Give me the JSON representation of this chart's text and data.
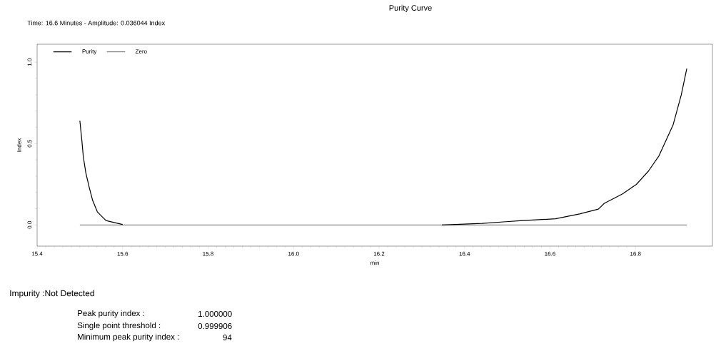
{
  "chart_data": {
    "type": "line",
    "title": "Purity Curve",
    "xlabel": "min",
    "ylabel": "Index",
    "annotations": [
      "Time: 16.6 Minutes - Amplitude: 0.036044 Index",
      "Impurity :Not Detected",
      "Peak purity index :",
      "1.000000",
      "Single point threshold :",
      "0.999906",
      "Minimum peak purity index :",
      "94"
    ],
    "series": [
      {
        "name": "Purity",
        "color": "#000000",
        "x": [
          15.5,
          15.505,
          15.508,
          15.514,
          15.522,
          15.53,
          15.541,
          15.561,
          15.58,
          15.6,
          null,
          16.347,
          16.441,
          16.497,
          16.53,
          16.613,
          16.669,
          16.713,
          16.727,
          16.769,
          16.802,
          16.83,
          16.855,
          16.888,
          16.907,
          16.92
        ],
        "values": [
          0.64,
          0.51,
          0.42,
          0.32,
          0.23,
          0.15,
          0.08,
          0.027,
          0.015,
          0.003,
          null,
          0.0,
          0.01,
          0.02,
          0.026,
          0.038,
          0.068,
          0.097,
          0.133,
          0.19,
          0.249,
          0.33,
          0.425,
          0.615,
          0.798,
          0.96
        ]
      },
      {
        "name": "Zero",
        "color": "#000000",
        "x": [
          15.5,
          16.92
        ],
        "values": [
          0,
          0
        ]
      }
    ],
    "xlim": [
      15.4,
      16.98
    ],
    "ylim": [
      -0.13,
      1.11
    ],
    "xticks": [
      15.4,
      15.6,
      15.8,
      {
        "value": 16.0,
        "label": "16.0"
      },
      16.2,
      16.4,
      16.6,
      16.8
    ],
    "yticks": [
      {
        "value": 0,
        "label": "0.0"
      },
      {
        "value": 0.5,
        "label": "0.5"
      },
      {
        "value": 1,
        "label": "1.0"
      }
    ],
    "legend": "top left",
    "marker": "none",
    "line_style": "solid",
    "grid": false
  }
}
